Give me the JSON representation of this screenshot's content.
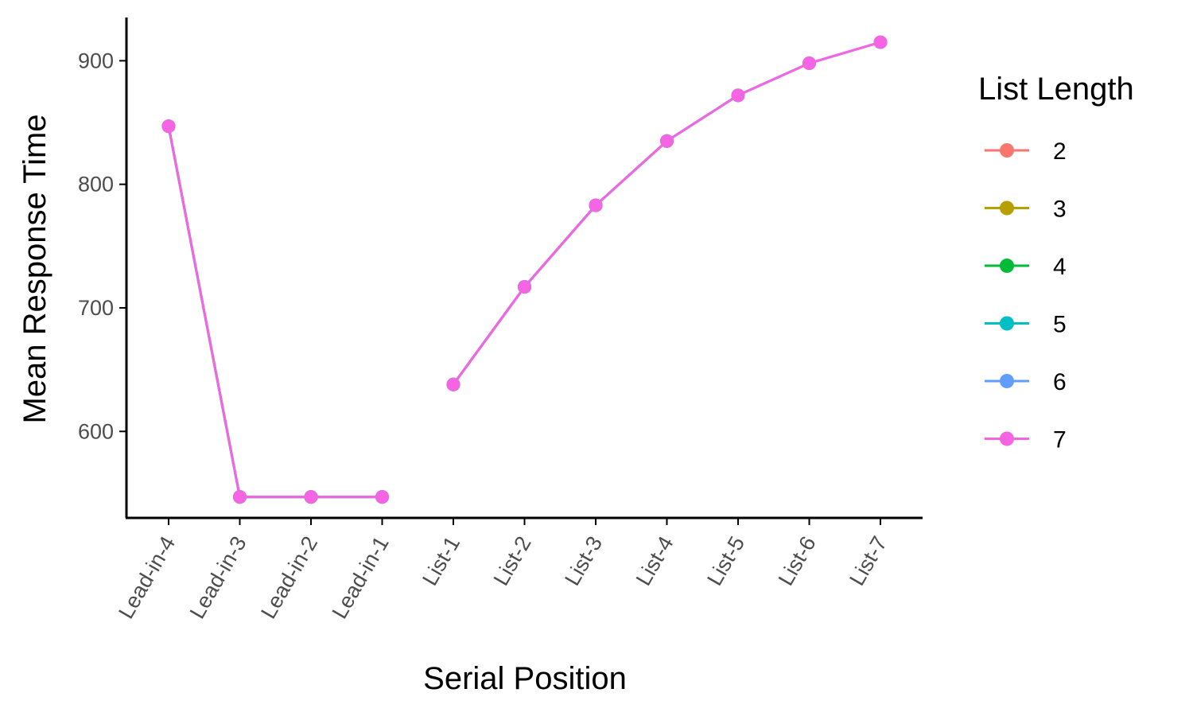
{
  "chart_data": {
    "type": "line",
    "xlabel": "Serial Position",
    "ylabel": "Mean Response Time",
    "categories": [
      "Lead-in-4",
      "Lead-in-3",
      "Lead-in-2",
      "Lead-in-1",
      "List-1",
      "List-2",
      "List-3",
      "List-4",
      "List-5",
      "List-6",
      "List-7"
    ],
    "ylim": [
      530,
      935
    ],
    "yticks": [
      600,
      700,
      800,
      900
    ],
    "grid": false,
    "legend": {
      "title": "List Length",
      "placement": "right"
    },
    "segments": [
      [
        0,
        3
      ],
      [
        4,
        10
      ]
    ],
    "series": [
      {
        "name": "2",
        "color": "#F8766D",
        "values": [
          847,
          547,
          547,
          547,
          638,
          717,
          783,
          null,
          null,
          null,
          null
        ]
      },
      {
        "name": "3",
        "color": "#B79F00",
        "values": [
          847,
          547,
          547,
          547,
          638,
          717,
          783,
          835,
          null,
          null,
          null
        ]
      },
      {
        "name": "4",
        "color": "#00BA38",
        "values": [
          847,
          547,
          547,
          547,
          638,
          717,
          783,
          835,
          872,
          null,
          null
        ]
      },
      {
        "name": "5",
        "color": "#00BFC4",
        "values": [
          847,
          547,
          547,
          547,
          638,
          717,
          783,
          835,
          872,
          898,
          null
        ]
      },
      {
        "name": "6",
        "color": "#619CFF",
        "values": [
          847,
          547,
          547,
          547,
          638,
          717,
          783,
          835,
          872,
          898,
          915
        ]
      },
      {
        "name": "7",
        "color": "#F564E3",
        "values": [
          847,
          547,
          547,
          547,
          638,
          717,
          783,
          835,
          872,
          898,
          915
        ]
      }
    ]
  }
}
